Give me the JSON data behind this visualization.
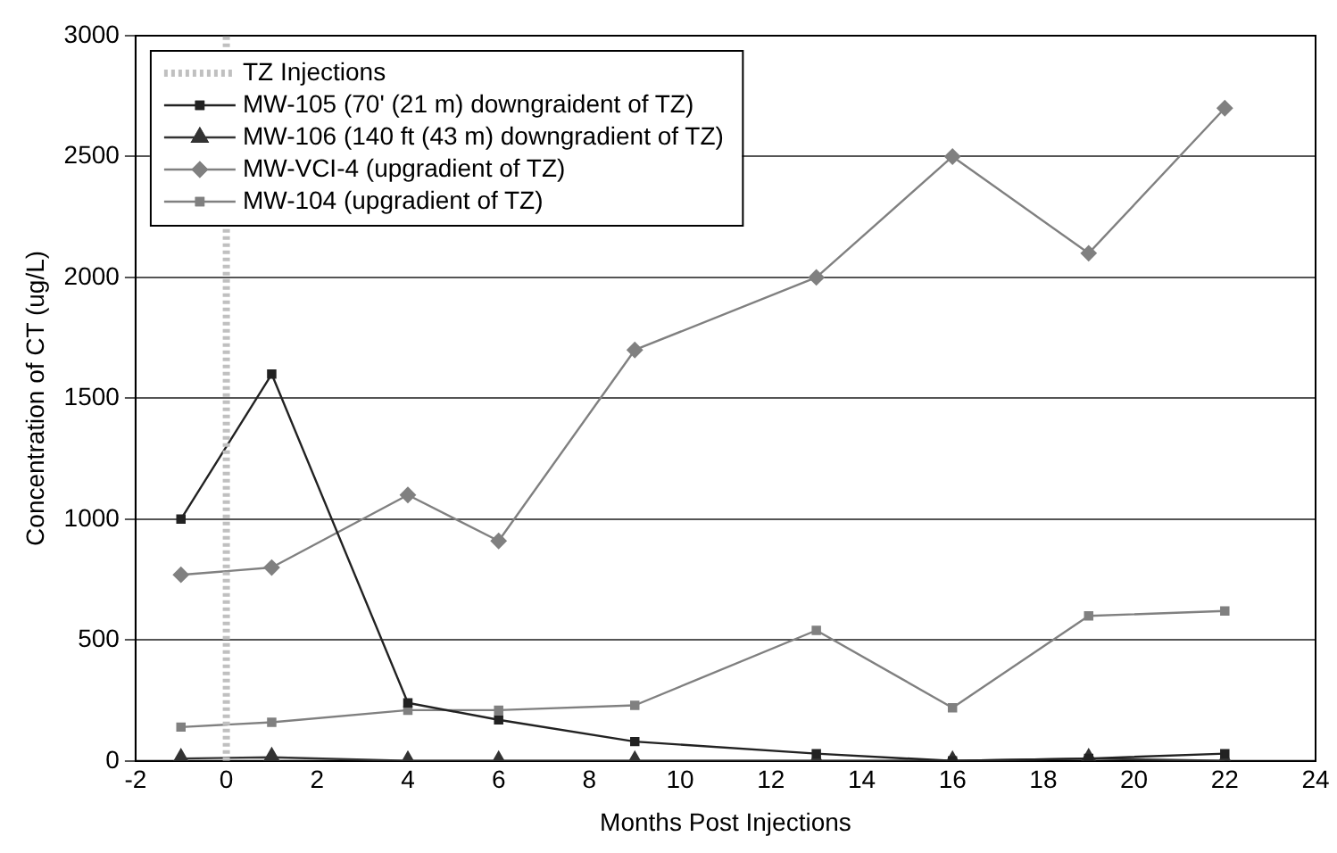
{
  "chart_data": {
    "type": "line",
    "xlabel": "Months Post Injections",
    "ylabel": "Concentration of CT (ug/L)",
    "xlim": [
      -2,
      24
    ],
    "xticks": [
      -2,
      0,
      2,
      4,
      6,
      8,
      10,
      12,
      14,
      16,
      18,
      20,
      22,
      24
    ],
    "ylim": [
      0,
      3000
    ],
    "yticks": [
      0,
      500,
      1000,
      1500,
      2000,
      2500,
      3000
    ],
    "grid": "y",
    "legend": "top left",
    "series": [
      {
        "name": "TZ Injections",
        "color": "#c0c0c0",
        "x": [
          0,
          0
        ],
        "values": [
          0,
          3000
        ],
        "marker": "none",
        "line_style": "dotted"
      },
      {
        "name": "MW-105 (70' (21 m) downgraident of TZ)",
        "color": "#222222",
        "x": [
          -1,
          1,
          4,
          6,
          9,
          13,
          16,
          19,
          22
        ],
        "values": [
          1000,
          1600,
          240,
          170,
          80,
          30,
          0,
          10,
          30
        ],
        "marker": "square",
        "line_style": "solid"
      },
      {
        "name": "MW-106 (140 ft (43 m) downgradient of TZ)",
        "color": "#333333",
        "x": [
          -1,
          1,
          4,
          6,
          9,
          13,
          16,
          19,
          22
        ],
        "values": [
          10,
          15,
          0,
          0,
          0,
          0,
          0,
          10,
          0
        ],
        "marker": "triangle",
        "line_style": "solid"
      },
      {
        "name": "MW-VCI-4 (upgradient of TZ)",
        "color": "#808080",
        "x": [
          -1,
          1,
          4,
          6,
          9,
          13,
          16,
          19,
          22
        ],
        "values": [
          770,
          800,
          1100,
          910,
          1700,
          2000,
          2500,
          2100,
          2700
        ],
        "marker": "diamond",
        "line_style": "solid"
      },
      {
        "name": "MW-104 (upgradient of TZ)",
        "color": "#808080",
        "x": [
          -1,
          1,
          4,
          6,
          9,
          13,
          16,
          19,
          22
        ],
        "values": [
          140,
          160,
          210,
          210,
          230,
          540,
          220,
          600,
          620
        ],
        "marker": "square",
        "line_style": "solid"
      }
    ]
  }
}
